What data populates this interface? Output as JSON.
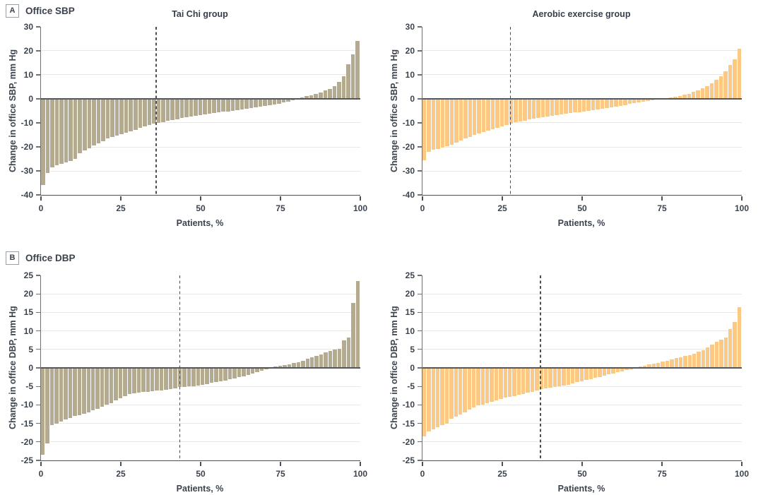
{
  "panels": [
    {
      "letter": "A",
      "label": "Office SBP"
    },
    {
      "letter": "B",
      "label": "Office DBP"
    }
  ],
  "colors": {
    "tai_chi_bar": "#b4aa8f",
    "aerobic_bar": "#fbc983",
    "gridline": "#e9e8e4",
    "zero_line": "#53565a",
    "axis": "#4d5156",
    "dashed_line": "#4b4e52",
    "text": "#3b434e"
  },
  "chart_data": [
    {
      "type": "bar",
      "title": "Tai Chi group",
      "ylabel": "Change in office SBP, mm Hg",
      "xlabel": "Patients, %",
      "ylim": [
        -40,
        30
      ],
      "yticks": [
        30,
        20,
        10,
        0,
        -10,
        -20,
        -30,
        -40
      ],
      "gridlines": [
        20,
        10,
        -10,
        -20,
        -30
      ],
      "xticks": [
        0,
        25,
        50,
        75,
        100
      ],
      "dashed_line_x": 36,
      "bar_color": "#b4aa8f",
      "values": [
        -36,
        -31,
        -28.5,
        -27.5,
        -27,
        -26.5,
        -26,
        -25,
        -22.5,
        -21.5,
        -20.5,
        -19.5,
        -18.5,
        -17.5,
        -16.5,
        -16,
        -15.3,
        -14.6,
        -14,
        -13.4,
        -12.8,
        -12.2,
        -11.6,
        -11,
        -10.4,
        -10,
        -9.6,
        -9.2,
        -8.8,
        -8.4,
        -8,
        -7.7,
        -7.4,
        -7.1,
        -6.8,
        -6.5,
        -6.2,
        -5.9,
        -5.7,
        -5.4,
        -5.2,
        -5,
        -4.7,
        -4.4,
        -4.1,
        -3.8,
        -3.5,
        -3.2,
        -2.9,
        -2.6,
        -2.3,
        -2,
        -1.6,
        -1.2,
        -0.7,
        0.3,
        0.7,
        1.1,
        1.6,
        2.1,
        2.7,
        3.4,
        4.2,
        5.2,
        7,
        9.5,
        14.5,
        18.5,
        24
      ]
    },
    {
      "type": "bar",
      "title": "Aerobic exercise group",
      "ylabel": "Change in office SBP, mm Hg",
      "xlabel": "Patients, %",
      "ylim": [
        -40,
        30
      ],
      "yticks": [
        30,
        20,
        10,
        0,
        -10,
        -20,
        -30,
        -40
      ],
      "gridlines": [
        20,
        10,
        -10,
        -20,
        -30
      ],
      "xticks": [
        0,
        25,
        50,
        75,
        100
      ],
      "dashed_line_x": 27.5,
      "bar_color": "#fbc983",
      "values": [
        -25.5,
        -22,
        -21.3,
        -20.8,
        -20.2,
        -19.6,
        -19,
        -18.2,
        -17.4,
        -16.6,
        -15.8,
        -15,
        -14.3,
        -13.7,
        -13.2,
        -12.7,
        -12.2,
        -11.6,
        -11,
        -10.3,
        -9.8,
        -9.4,
        -9,
        -8.6,
        -8.2,
        -7.9,
        -7.6,
        -7.3,
        -7,
        -6.7,
        -6.4,
        -6.1,
        -5.9,
        -5.7,
        -5.5,
        -5.2,
        -4.9,
        -4.6,
        -4.3,
        -4,
        -3.7,
        -3.4,
        -3.1,
        -2.8,
        -2.5,
        -2.2,
        -1.9,
        -1.6,
        -1.3,
        -1,
        -0.7,
        -0.4,
        0.2,
        0.4,
        0.7,
        1,
        1.3,
        1.7,
        2.2,
        2.8,
        3.5,
        4.3,
        5.3,
        6.5,
        7.8,
        9.5,
        11.5,
        14,
        16.5,
        21
      ]
    },
    {
      "type": "bar",
      "title": "",
      "ylabel": "Change in office DBP, mm Hg",
      "xlabel": "Patients, %",
      "ylim": [
        -25,
        25
      ],
      "yticks": [
        25,
        20,
        15,
        10,
        5,
        0,
        -5,
        -10,
        -15,
        -20,
        -25
      ],
      "gridlines": [
        20,
        15,
        10,
        5,
        -5,
        -10,
        -15,
        -20
      ],
      "xticks": [
        0,
        25,
        50,
        75,
        100
      ],
      "dashed_line_x": 43.5,
      "bar_color": "#b4aa8f",
      "values": [
        -23.5,
        -20.5,
        -15.5,
        -15,
        -14.5,
        -14,
        -13.5,
        -13,
        -12.7,
        -12.4,
        -12,
        -11.5,
        -11,
        -10.5,
        -10,
        -9.5,
        -8.8,
        -8.2,
        -7.6,
        -7.1,
        -6.8,
        -6.6,
        -6.5,
        -6.4,
        -6.3,
        -6.2,
        -6.1,
        -6,
        -5.8,
        -5.5,
        -5.2,
        -5.1,
        -5,
        -4.9,
        -4.7,
        -4.5,
        -4.3,
        -4.1,
        -3.9,
        -3.7,
        -3.4,
        -3.1,
        -2.8,
        -2.5,
        -2.2,
        -1.9,
        -1.6,
        -1.2,
        -0.8,
        -0.4,
        0.2,
        0.4,
        0.6,
        0.8,
        1,
        1.3,
        1.6,
        2,
        2.4,
        2.8,
        3.2,
        3.7,
        4.2,
        4.6,
        5,
        5.2,
        7.5,
        8.2,
        17.5,
        23.5
      ]
    },
    {
      "type": "bar",
      "title": "",
      "ylabel": "Change in office DBP, mm Hg",
      "xlabel": "Patients, %",
      "ylim": [
        -25,
        25
      ],
      "yticks": [
        25,
        20,
        15,
        10,
        5,
        0,
        -5,
        -10,
        -15,
        -20,
        -25
      ],
      "gridlines": [
        20,
        15,
        10,
        5,
        -5,
        -10,
        -15,
        -20
      ],
      "xticks": [
        0,
        25,
        50,
        75,
        100
      ],
      "dashed_line_x": 37,
      "bar_color": "#fbc983",
      "values": [
        -18.5,
        -17.2,
        -16.6,
        -16,
        -15.5,
        -15,
        -13.8,
        -13.2,
        -12.6,
        -12,
        -11.2,
        -10.6,
        -10.2,
        -9.9,
        -9.6,
        -9.2,
        -8.8,
        -8.4,
        -8,
        -7.8,
        -7.6,
        -7.3,
        -7,
        -6.7,
        -6.4,
        -6.1,
        -5.8,
        -5.5,
        -5.3,
        -5.1,
        -4.9,
        -4.7,
        -4.5,
        -4.2,
        -3.9,
        -3.6,
        -3.3,
        -3,
        -2.7,
        -2.4,
        -2.1,
        -1.8,
        -1.5,
        -1.2,
        -0.9,
        -0.6,
        -0.3,
        0.2,
        0.4,
        0.6,
        0.9,
        1.1,
        1.4,
        1.7,
        2,
        2.3,
        2.6,
        2.9,
        3.2,
        3.5,
        3.9,
        4.3,
        4.8,
        5.5,
        6.3,
        7,
        7.6,
        8.2,
        10.5,
        12.5,
        16.5
      ]
    }
  ]
}
